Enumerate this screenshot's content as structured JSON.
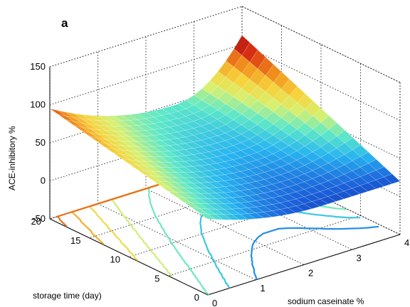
{
  "chart_data": {
    "type": "surface",
    "panel_label": "a",
    "xlabel": "sodium caseinate %",
    "ylabel": "storage time (day)",
    "zlabel": "ACE-inhibitory %",
    "xlim": [
      0,
      4
    ],
    "ylim": [
      0,
      20
    ],
    "zlim": [
      -50,
      150
    ],
    "x_ticks": [
      "0",
      "1",
      "2",
      "3",
      "4"
    ],
    "y_ticks": [
      "0",
      "5",
      "10",
      "15",
      "20"
    ],
    "z_ticks": [
      "-50",
      "0",
      "50",
      "100",
      "150"
    ],
    "grid": true,
    "colormap": [
      "#0a1a8f",
      "#1b5fd9",
      "#27b4f0",
      "#5ee8c8",
      "#d8f070",
      "#f7d23a",
      "#f08a1a",
      "#d62a14",
      "#8c1010"
    ],
    "surface_corners": [
      {
        "x": 0,
        "y": 20,
        "z": 95
      },
      {
        "x": 4,
        "y": 20,
        "z": 112
      },
      {
        "x": 0,
        "y": 0,
        "z": 50
      },
      {
        "x": 2.4,
        "y": 0,
        "z": 20
      },
      {
        "x": 2.6,
        "y": 20,
        "z": 48
      }
    ],
    "contour_levels": [
      10,
      20,
      30,
      40,
      50,
      60,
      70,
      80,
      90,
      100
    ]
  }
}
